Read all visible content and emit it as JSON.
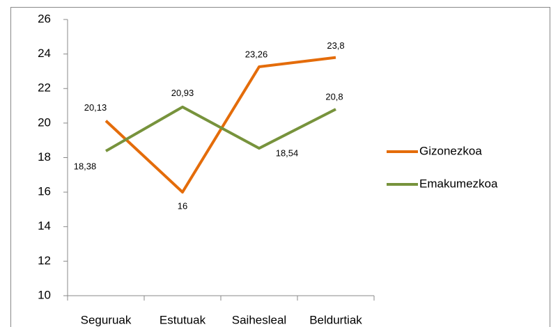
{
  "chart_data": {
    "type": "line",
    "categories": [
      "Seguruak",
      "Estutuak",
      "Saihesleal",
      "Beldurtiak"
    ],
    "series": [
      {
        "name": "Gizonezkoa",
        "color": "#e46c0a",
        "values": [
          20.13,
          16,
          23.26,
          23.8
        ],
        "value_labels": [
          "20,13",
          "16",
          "23,26",
          "23,8"
        ]
      },
      {
        "name": "Emakumezkoa",
        "color": "#77933c",
        "values": [
          18.38,
          20.93,
          18.54,
          20.8
        ],
        "value_labels": [
          "18,38",
          "20,93",
          "18,54",
          "20,8"
        ]
      }
    ],
    "ylim": [
      10,
      26
    ],
    "yticks": [
      10,
      12,
      14,
      16,
      18,
      20,
      22,
      24,
      26
    ],
    "grid": false,
    "legend": "right"
  }
}
